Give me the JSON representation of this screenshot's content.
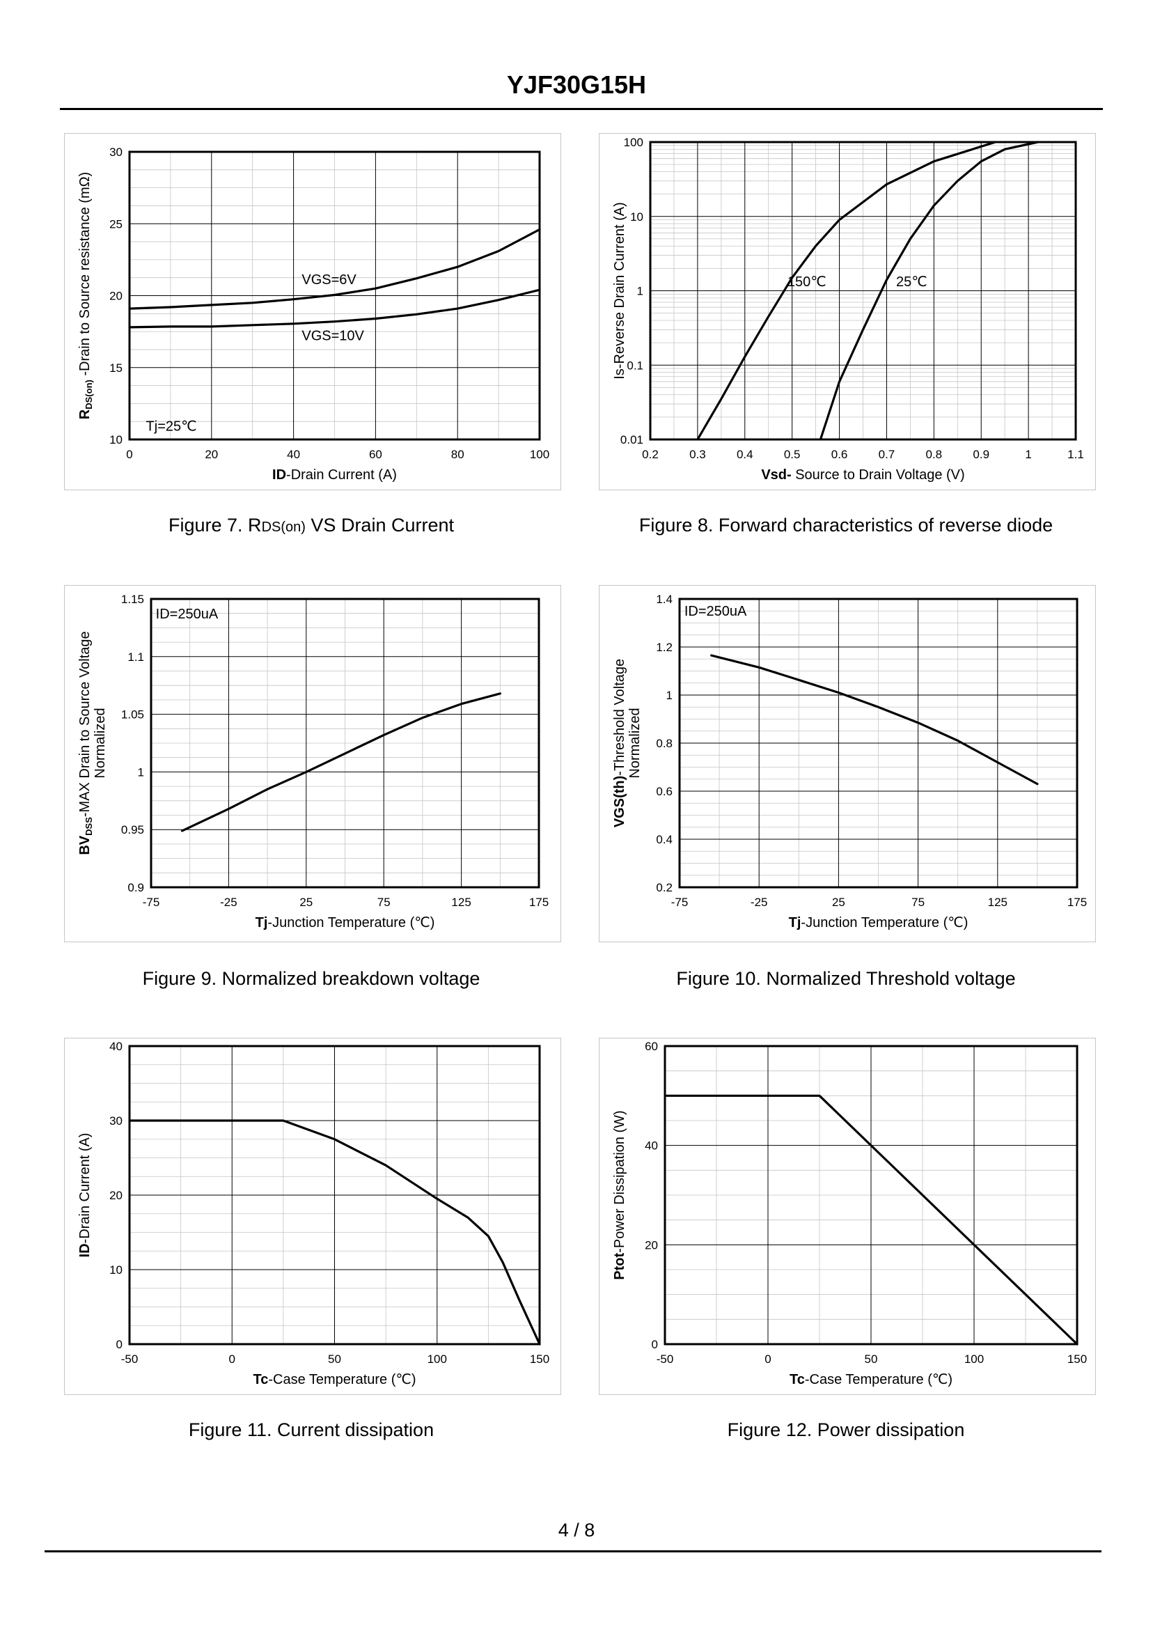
{
  "header": {
    "title": "YJF30G15H"
  },
  "footer": {
    "page": "4 / 8"
  },
  "chart_data": [
    {
      "id": "fig7",
      "type": "line",
      "caption": {
        "prefix": "Figure 7.  R",
        "sub": "DS(on)",
        "suffix": " VS Drain Current"
      },
      "xlabel": {
        "bold": "ID",
        "rest": "-Drain Current (A)"
      },
      "ylabel": {
        "bold": "R",
        "sub": "DS(on)",
        "rest": " -Drain to Source resistance (mΩ)"
      },
      "xlim": [
        0,
        100
      ],
      "ylim": [
        10,
        30
      ],
      "x_ticks": [
        0,
        20,
        40,
        60,
        80,
        100
      ],
      "y_ticks": [
        10,
        15,
        20,
        25,
        30
      ],
      "annotations": [
        {
          "text": "VGS=6V",
          "x": 42,
          "y": 20.8
        },
        {
          "text": "VGS=10V",
          "x": 42,
          "y": 16.9
        },
        {
          "text": "Tj=25℃",
          "x": 4,
          "y": 10.6
        }
      ],
      "series": [
        {
          "name": "VGS=6V",
          "x": [
            0,
            10,
            20,
            30,
            40,
            50,
            60,
            70,
            80,
            90,
            100
          ],
          "y": [
            19.1,
            19.2,
            19.35,
            19.5,
            19.75,
            20.05,
            20.5,
            21.2,
            22.0,
            23.1,
            24.6
          ]
        },
        {
          "name": "VGS=10V",
          "x": [
            0,
            10,
            20,
            30,
            40,
            50,
            60,
            70,
            80,
            90,
            100
          ],
          "y": [
            17.8,
            17.85,
            17.85,
            17.95,
            18.05,
            18.2,
            18.4,
            18.7,
            19.1,
            19.7,
            20.4
          ]
        }
      ]
    },
    {
      "id": "fig8",
      "type": "line",
      "yscale": "log",
      "caption": {
        "prefix": "Figure 8.  Forward characteristics of reverse diode",
        "sub": "",
        "suffix": ""
      },
      "xlabel": {
        "bold": "Vsd-",
        "rest": " Source to Drain Voltage (V)"
      },
      "ylabel": {
        "bold": "",
        "sub": "",
        "rest": "Is-Reverse  Drain Current (A)"
      },
      "xlim": [
        0.2,
        1.1
      ],
      "ylim": [
        0.01,
        100
      ],
      "x_ticks": [
        0.2,
        0.3,
        0.4,
        0.5,
        0.6,
        0.7,
        0.8,
        0.9,
        1,
        1.1
      ],
      "y_ticks": [
        0.01,
        0.1,
        1,
        10,
        100
      ],
      "annotations": [
        {
          "text": "150℃",
          "x": 0.49,
          "y": 1.15
        },
        {
          "text": "25℃",
          "x": 0.72,
          "y": 1.15
        }
      ],
      "series": [
        {
          "name": "150℃",
          "x": [
            0.3,
            0.35,
            0.4,
            0.45,
            0.5,
            0.55,
            0.6,
            0.7,
            0.8,
            0.93
          ],
          "y": [
            0.01,
            0.035,
            0.13,
            0.45,
            1.5,
            4.0,
            9.0,
            27,
            55,
            100
          ]
        },
        {
          "name": "25℃",
          "x": [
            0.56,
            0.6,
            0.65,
            0.7,
            0.75,
            0.8,
            0.85,
            0.9,
            0.95,
            1.02
          ],
          "y": [
            0.01,
            0.06,
            0.3,
            1.4,
            5.0,
            14,
            30,
            55,
            80,
            100
          ]
        }
      ]
    },
    {
      "id": "fig9",
      "type": "line",
      "caption": {
        "prefix": "Figure 9.  Normalized breakdown voltage",
        "sub": "",
        "suffix": ""
      },
      "xlabel": {
        "bold": "Tj",
        "rest": "-Junction  Temperature (℃)"
      },
      "ylabel": {
        "bold": "BV",
        "sub": "DSS",
        "rest": "-MAX Drain to Source Voltage"
      },
      "ylabel2": "Normalized",
      "xlim": [
        -75,
        175
      ],
      "ylim": [
        0.9,
        1.15
      ],
      "x_ticks": [
        -75,
        -25,
        25,
        75,
        125,
        175
      ],
      "y_ticks": [
        0.9,
        0.95,
        1,
        1.05,
        1.1,
        1.15
      ],
      "annotations": [
        {
          "text": "ID=250uA",
          "x": -72,
          "y": 1.133
        }
      ],
      "series": [
        {
          "name": "BVDSS",
          "x": [
            -55,
            -25,
            0,
            25,
            50,
            75,
            100,
            125,
            150
          ],
          "y": [
            0.949,
            0.968,
            0.985,
            1.0,
            1.016,
            1.032,
            1.047,
            1.059,
            1.068
          ]
        }
      ]
    },
    {
      "id": "fig10",
      "type": "line",
      "caption": {
        "prefix": "Figure 10.  Normalized Threshold voltage",
        "sub": "",
        "suffix": ""
      },
      "xlabel": {
        "bold": "Tj",
        "rest": "-Junction  Temperature (℃)"
      },
      "ylabel": {
        "bold": "VGS(th)",
        "sub": "",
        "rest": "-Threshold  Voltage"
      },
      "ylabel2": "Normalized",
      "xlim": [
        -75,
        175
      ],
      "ylim": [
        0.2,
        1.4
      ],
      "x_ticks": [
        -75,
        -25,
        25,
        75,
        125,
        175
      ],
      "y_ticks": [
        0.2,
        0.4,
        0.6,
        0.8,
        1,
        1.2,
        1.4
      ],
      "annotations": [
        {
          "text": "ID=250uA",
          "x": -72,
          "y": 1.33
        }
      ],
      "series": [
        {
          "name": "VGS(th)",
          "x": [
            -55,
            -25,
            0,
            25,
            50,
            75,
            100,
            125,
            150
          ],
          "y": [
            1.165,
            1.115,
            1.063,
            1.01,
            0.95,
            0.885,
            0.81,
            0.72,
            0.63
          ]
        }
      ]
    },
    {
      "id": "fig11",
      "type": "line",
      "caption": {
        "prefix": "Figure 11.  Current dissipation",
        "sub": "",
        "suffix": ""
      },
      "xlabel": {
        "bold": "Tc",
        "rest": "-Case Temperature (℃)"
      },
      "ylabel": {
        "bold": "ID",
        "sub": "",
        "rest": "-Drain Current (A)"
      },
      "xlim": [
        -50,
        150
      ],
      "ylim": [
        0,
        40
      ],
      "x_ticks": [
        -50,
        0,
        50,
        100,
        150
      ],
      "y_ticks": [
        0,
        10,
        20,
        30,
        40
      ],
      "annotations": [],
      "series": [
        {
          "name": "ID",
          "x": [
            -50,
            25,
            50,
            75,
            100,
            115,
            125,
            132,
            140,
            150
          ],
          "y": [
            30,
            30,
            27.5,
            24,
            19.5,
            17,
            14.5,
            11,
            6,
            0
          ]
        }
      ]
    },
    {
      "id": "fig12",
      "type": "line",
      "caption": {
        "prefix": "Figure 12.  Power dissipation",
        "sub": "",
        "suffix": ""
      },
      "xlabel": {
        "bold": "Tc",
        "rest": "-Case Temperature (℃)"
      },
      "ylabel": {
        "bold": "Ptot",
        "sub": "",
        "rest": "-Power Dissipation (W)"
      },
      "xlim": [
        -50,
        150
      ],
      "ylim": [
        0,
        60
      ],
      "x_ticks": [
        -50,
        0,
        50,
        100,
        150
      ],
      "y_ticks": [
        0,
        20,
        40,
        60
      ],
      "annotations": [],
      "series": [
        {
          "name": "Ptot",
          "x": [
            -50,
            25,
            150
          ],
          "y": [
            50,
            50,
            0
          ]
        }
      ]
    }
  ]
}
